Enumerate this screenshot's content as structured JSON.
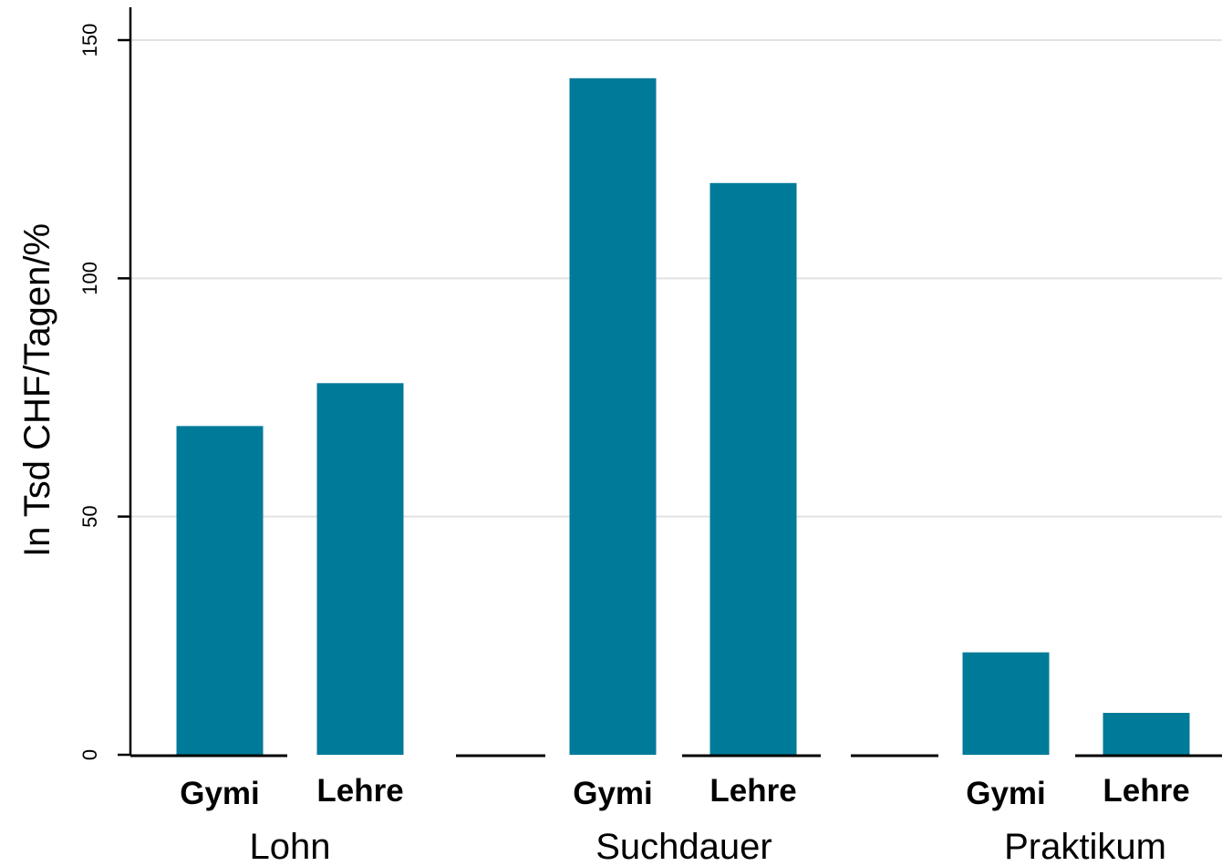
{
  "chart_data": {
    "type": "bar",
    "ylabel": "In Tsd CHF/Tagen/%",
    "ylim": [
      0,
      150
    ],
    "yticks": [
      0,
      50,
      100,
      150
    ],
    "ytick_labels": [
      "0",
      "50",
      "100",
      "150"
    ],
    "grid": true,
    "groups": [
      {
        "label": "Lohn",
        "bars": [
          {
            "label": "Gymi",
            "value": 69
          },
          {
            "label": "Lehre",
            "value": 78
          }
        ]
      },
      {
        "label": "Suchdauer",
        "bars": [
          {
            "label": "Gymi",
            "value": 142
          },
          {
            "label": "Lehre",
            "value": 120
          }
        ]
      },
      {
        "label": "Praktikum",
        "bars": [
          {
            "label": "Gymi",
            "value": 21.5
          },
          {
            "label": "Lehre",
            "value": 8.8
          }
        ]
      }
    ],
    "colors": {
      "bar": "#007a99",
      "grid": "#e2e2e2",
      "axis": "#000000"
    }
  }
}
